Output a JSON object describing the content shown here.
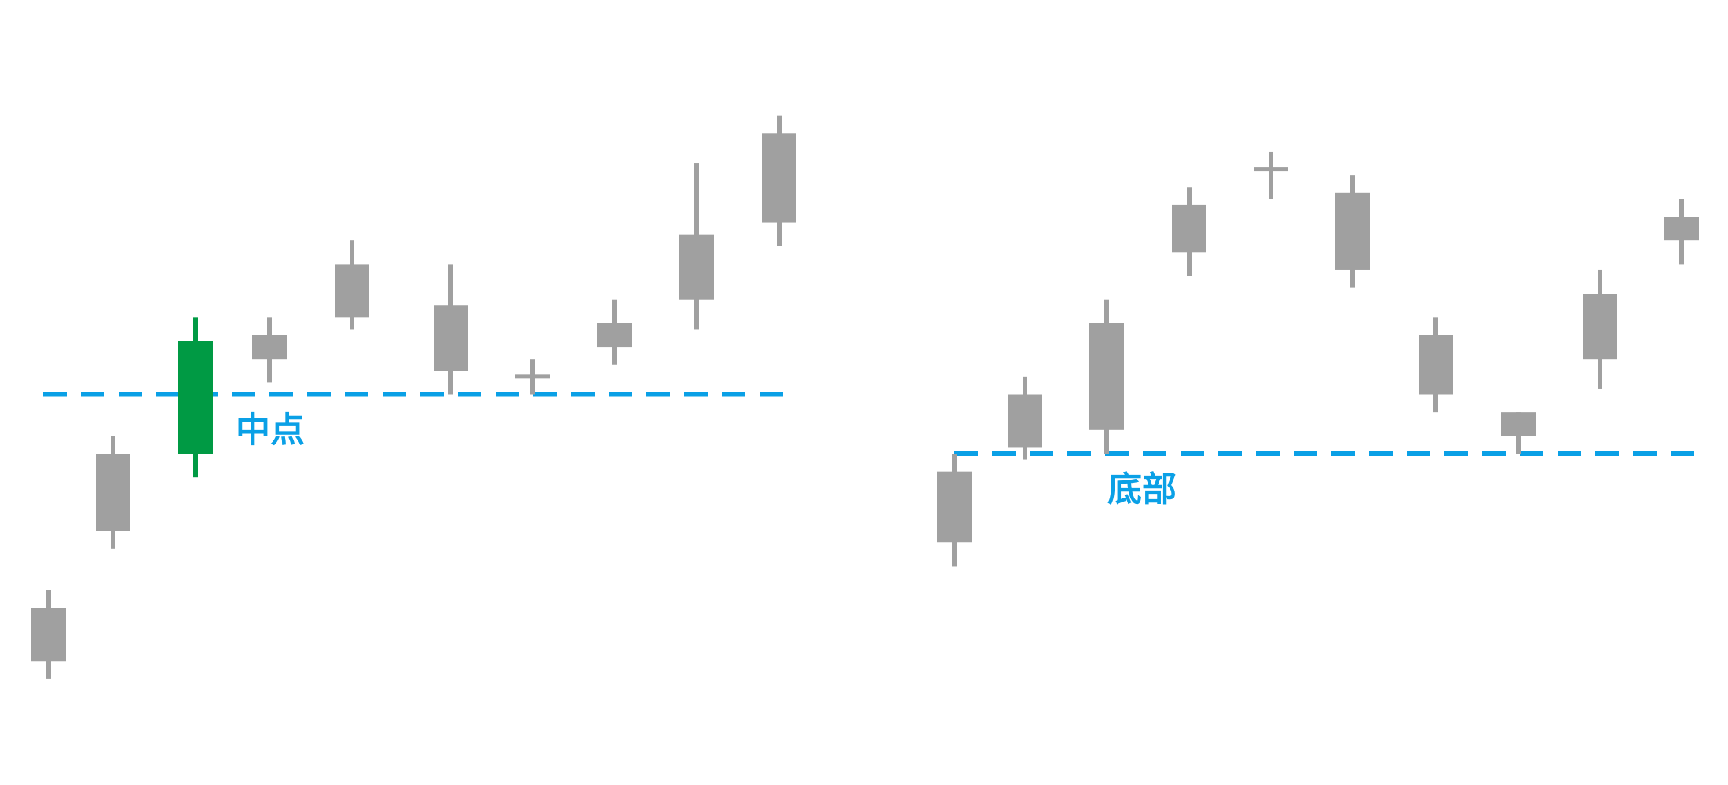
{
  "chart_data": [
    {
      "type": "candlestick",
      "title": "",
      "xlabel": "",
      "ylabel": "",
      "ylim": [
        0,
        100
      ],
      "neutral_color": "#a0a0a0",
      "highlight_color": "#009a44",
      "reference_color": "#0aa0e6",
      "reference_line": {
        "value": 50,
        "style": "dashed",
        "label": "中点"
      },
      "candles": [
        {
          "low": 2,
          "high": 17,
          "body_low": 5,
          "body_high": 14
        },
        {
          "low": 24,
          "high": 43,
          "body_low": 27,
          "body_high": 40
        },
        {
          "low": 36,
          "high": 63,
          "body_low": 40,
          "body_high": 59,
          "highlight": true
        },
        {
          "low": 52,
          "high": 63,
          "body_low": 56,
          "body_high": 60
        },
        {
          "low": 61,
          "high": 76,
          "body_low": 63,
          "body_high": 72
        },
        {
          "low": 50,
          "high": 72,
          "body_low": 54,
          "body_high": 65
        },
        {
          "low": 50,
          "high": 56,
          "body_low": 53,
          "body_high": 53
        },
        {
          "low": 55,
          "high": 66,
          "body_low": 58,
          "body_high": 62
        },
        {
          "low": 61,
          "high": 89,
          "body_low": 66,
          "body_high": 77
        },
        {
          "low": 75,
          "high": 97,
          "body_low": 79,
          "body_high": 94
        }
      ]
    },
    {
      "type": "candlestick",
      "title": "",
      "xlabel": "",
      "ylabel": "",
      "ylim": [
        0,
        100
      ],
      "neutral_color": "#a0a0a0",
      "highlight_color": "#009a44",
      "reference_color": "#0aa0e6",
      "reference_line": {
        "value": 40,
        "style": "dashed",
        "label": "底部"
      },
      "candles": [
        {
          "low": 21,
          "high": 40,
          "body_low": 25,
          "body_high": 37
        },
        {
          "low": 39,
          "high": 53,
          "body_low": 41,
          "body_high": 50
        },
        {
          "low": 40,
          "high": 66,
          "body_low": 44,
          "body_high": 62
        },
        {
          "low": 70,
          "high": 85,
          "body_low": 74,
          "body_high": 82
        },
        {
          "low": 83,
          "high": 91,
          "body_low": 88,
          "body_high": 88
        },
        {
          "low": 68,
          "high": 87,
          "body_low": 71,
          "body_high": 84
        },
        {
          "low": 47,
          "high": 63,
          "body_low": 50,
          "body_high": 60
        },
        {
          "low": 40,
          "high": 47,
          "body_low": 43,
          "body_high": 47
        },
        {
          "low": 51,
          "high": 71,
          "body_low": 56,
          "body_high": 67
        },
        {
          "low": 72,
          "high": 83,
          "body_low": 76,
          "body_high": 80
        }
      ]
    }
  ]
}
